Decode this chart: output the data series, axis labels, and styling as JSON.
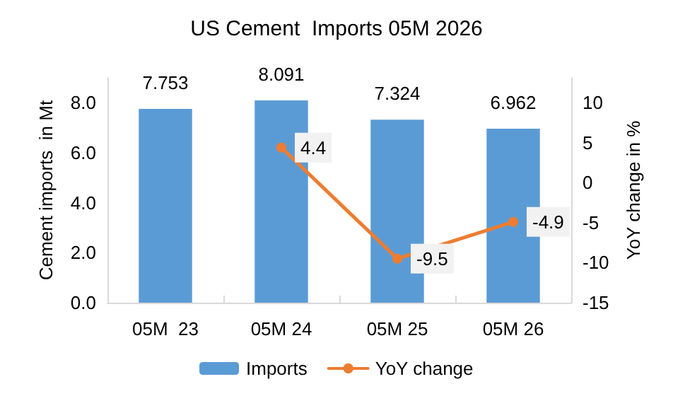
{
  "chart_data": {
    "type": "bar",
    "title": "US Cement  Imports 05M 2026",
    "ylabel": "Cement imports  in Mt",
    "y2label": "YoY change in %",
    "categories": [
      "05M  23",
      "05M 24",
      "05M 25",
      "05M 26"
    ],
    "series": [
      {
        "name": "Imports",
        "color": "#5b9bd5",
        "values": [
          7.753,
          8.091,
          7.324,
          6.962
        ]
      },
      {
        "name": "YoY change",
        "type": "line",
        "axis": "y2",
        "color": "#ed7d31",
        "values": [
          null,
          4.4,
          -9.5,
          -4.9
        ],
        "marker": "circle"
      }
    ],
    "ylim": [
      0,
      9
    ],
    "yticks": [
      {
        "value": 0,
        "label": "0.0"
      },
      {
        "value": 2,
        "label": "2.0"
      },
      {
        "value": 4,
        "label": "4.0"
      },
      {
        "value": 6,
        "label": "6.0"
      },
      {
        "value": 8,
        "label": "8.0"
      }
    ],
    "y2lim": [
      -15,
      13.125
    ],
    "y2ticks": [
      -15,
      -10,
      -5,
      0,
      5,
      10
    ],
    "data_labels": true,
    "grid": false,
    "legend": "bottom"
  }
}
